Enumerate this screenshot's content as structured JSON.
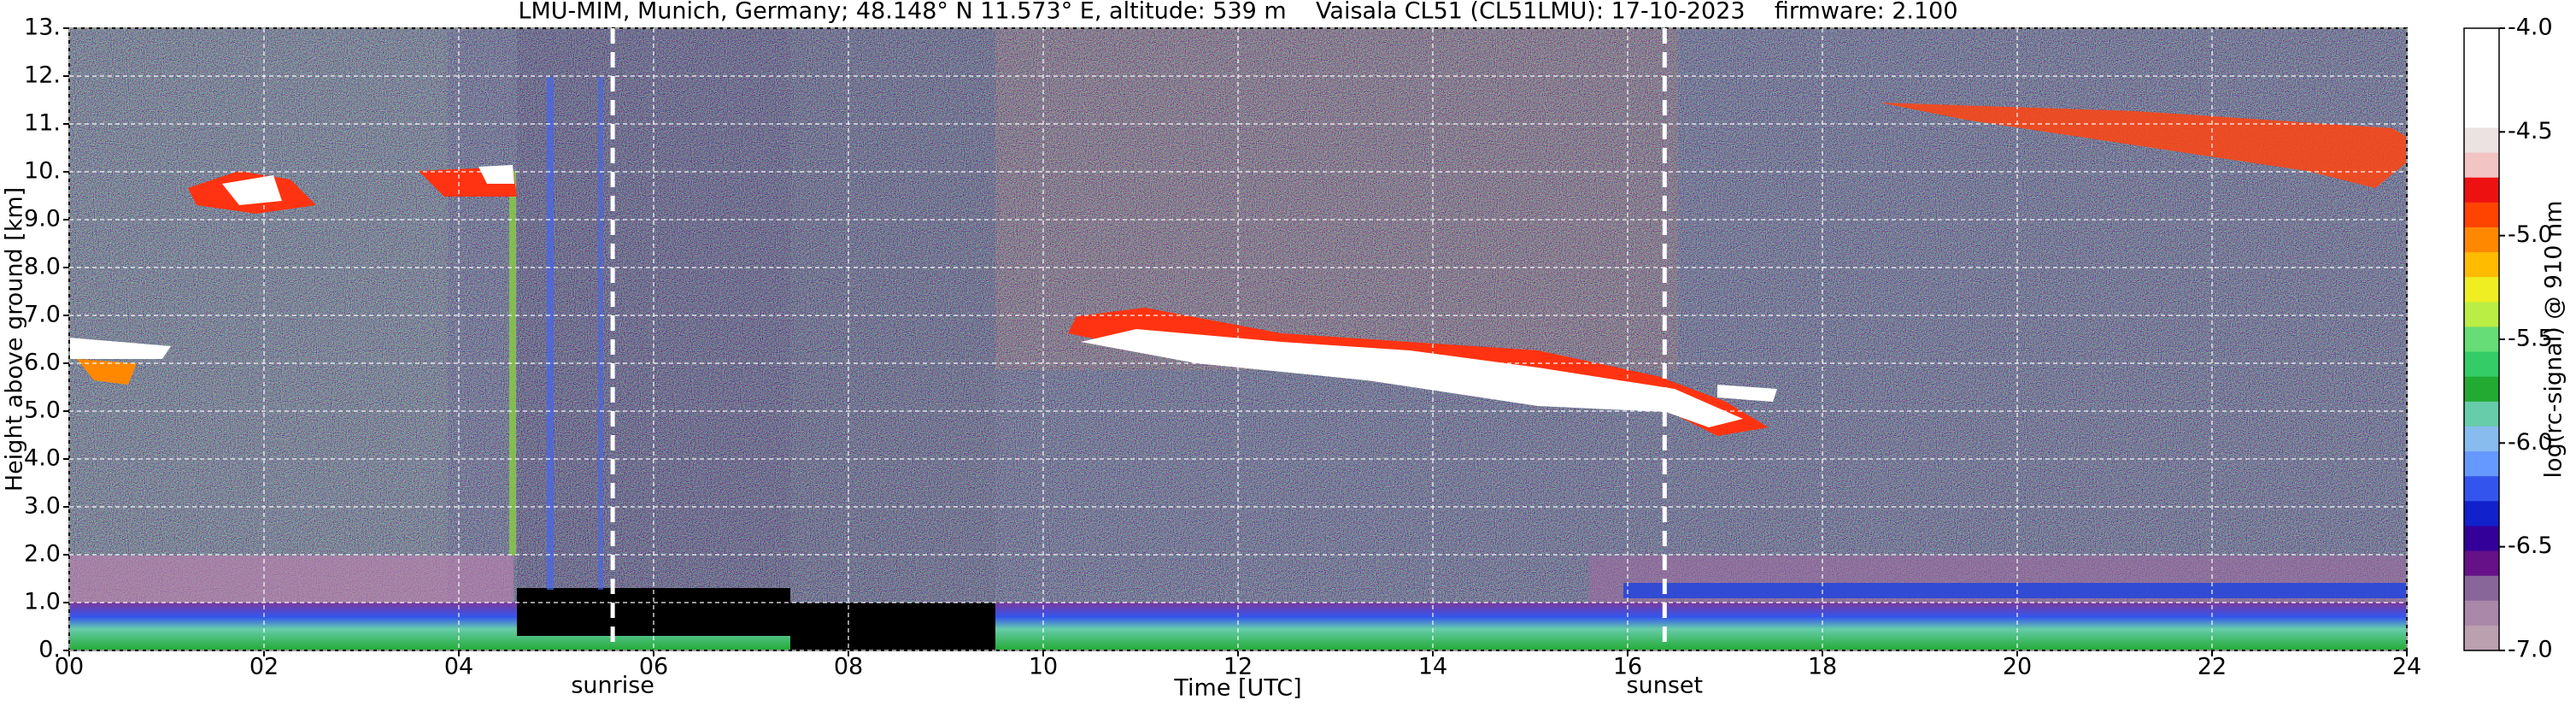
{
  "chart_data": {
    "type": "heatmap",
    "title": "LMU-MIM, Munich, Germany; 48.148° N 11.573° E, altitude: 539 m    Vaisala CL51 (CL51LMU): 17-10-2023    firmware: 2.100",
    "x_label": "Time [UTC]",
    "y_label": "Height above ground [km]",
    "colorbar_label": "log(rc-signal) @ 910 nm",
    "xlim": [
      0,
      24
    ],
    "xticks": [
      {
        "value": 0,
        "label": "00"
      },
      {
        "value": 2,
        "label": "02"
      },
      {
        "value": 4,
        "label": "04"
      },
      {
        "value": 6,
        "label": "06"
      },
      {
        "value": 8,
        "label": "08"
      },
      10,
      12,
      14,
      16,
      18,
      20,
      22,
      24
    ],
    "ylim": [
      0,
      13
    ],
    "yticks": [
      {
        "value": 0,
        "label": "0."
      },
      {
        "value": 1,
        "label": "1.0"
      },
      {
        "value": 2,
        "label": "2.0"
      },
      {
        "value": 3,
        "label": "3.0"
      },
      {
        "value": 4,
        "label": "4.0"
      },
      {
        "value": 5,
        "label": "5.0"
      },
      {
        "value": 6,
        "label": "6.0"
      },
      {
        "value": 7,
        "label": "7.0"
      },
      {
        "value": 8,
        "label": "8.0"
      },
      {
        "value": 9,
        "label": "9.0"
      },
      {
        "value": 10,
        "label": "10."
      },
      {
        "value": 11,
        "label": "11."
      },
      {
        "value": 12,
        "label": "12."
      },
      {
        "value": 13,
        "label": "13."
      }
    ],
    "clim": [
      -7,
      -4
    ],
    "cticks": [
      {
        "value": -4,
        "label": "-4.0"
      },
      -4.5,
      {
        "value": -5,
        "label": "-5.0"
      },
      -5.5,
      {
        "value": -6,
        "label": "-6.0"
      },
      -6.5,
      {
        "value": -7,
        "label": "-7.0"
      }
    ],
    "colormap": [
      "#ffffff",
      "#ffffff",
      "#ffffff",
      "#ffffff",
      "#ece2e2",
      "#f2c4c4",
      "#ee1111",
      "#ff4400",
      "#ff8800",
      "#ffbb00",
      "#eeee22",
      "#bbee44",
      "#66dd77",
      "#33cc66",
      "#22aa33",
      "#66ccaa",
      "#88bbee",
      "#6699ff",
      "#3355ee",
      "#1122cc",
      "#330099",
      "#661188",
      "#886699",
      "#aa88aa",
      "#bba0b0"
    ],
    "grid": true,
    "annotations": [
      {
        "text": "sunrise",
        "x": 5.58
      },
      {
        "text": "sunset",
        "x": 16.38
      }
    ]
  }
}
